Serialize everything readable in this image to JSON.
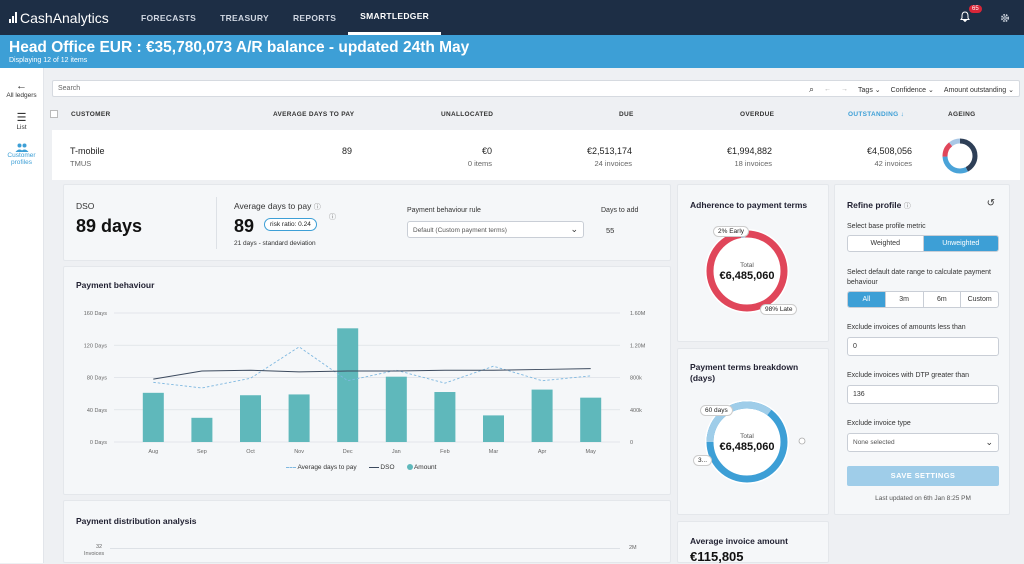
{
  "brand": "CashAnalytics",
  "nav": [
    "FORECASTS",
    "TREASURY",
    "REPORTS",
    "SMARTLEDGER"
  ],
  "notifications": "65",
  "banner": {
    "title": "Head Office EUR : €35,780,073 A/R balance - updated 24th May",
    "sub": "Displaying 12 of 12 items"
  },
  "sidebar": [
    {
      "label": "All ledgers",
      "icon": "arrow-left-icon"
    },
    {
      "label": "List",
      "icon": "list-icon"
    },
    {
      "label": "Customer profiles",
      "icon": "users-icon"
    }
  ],
  "search": {
    "placeholder": "Search",
    "filters": [
      "Tags",
      "Confidence",
      "Amount outstanding"
    ]
  },
  "columns": [
    "CUSTOMER",
    "AVERAGE DAYS TO PAY",
    "UNALLOCATED",
    "DUE",
    "OVERDUE",
    "OUTSTANDING",
    "AGEING"
  ],
  "customer": {
    "name": "T-mobile",
    "code": "TMUS",
    "avg_days": "89",
    "unallocated": "€0",
    "unallocated_sub": "0 items",
    "due": "€2,513,174",
    "due_sub": "24 invoices",
    "overdue": "€1,994,882",
    "overdue_sub": "18 invoices",
    "outstanding": "€4,508,056",
    "outstanding_sub": "42 invoices"
  },
  "dso": {
    "label": "DSO",
    "value": "89 days"
  },
  "avg_pay": {
    "label": "Average days to pay",
    "value": "89",
    "risk": "risk ratio: 0.24",
    "dev": "21 days - standard deviation"
  },
  "rule": {
    "label": "Payment behaviour rule",
    "value": "Default (Custom payment terms)",
    "days_label": "Days to add",
    "days": "55"
  },
  "payment_behaviour": {
    "title": "Payment behaviour",
    "legend": [
      "Average days to pay",
      "DSO",
      "Amount"
    ]
  },
  "chart_data": {
    "type": "bar",
    "title": "Payment behaviour",
    "categories": [
      "Aug",
      "Sep",
      "Oct",
      "Nov",
      "Dec",
      "Jan",
      "Feb",
      "Mar",
      "Apr",
      "May"
    ],
    "y_left_ticks": [
      "0 Days",
      "40 Days",
      "80 Days",
      "120 Days",
      "160 Days"
    ],
    "y_right_ticks": [
      "0",
      "400k",
      "800k",
      "1.20M",
      "1.60M"
    ],
    "ylim_left": [
      0,
      160
    ],
    "ylim_right": [
      0,
      1600000
    ],
    "series": [
      {
        "name": "Amount",
        "type": "bar",
        "axis": "right",
        "values": [
          610000,
          300000,
          580000,
          590000,
          1410000,
          810000,
          620000,
          330000,
          650000,
          550000
        ]
      },
      {
        "name": "Average days to pay",
        "type": "line",
        "style": "dashed",
        "axis": "left",
        "values": [
          74,
          67,
          79,
          118,
          76,
          89,
          73,
          94,
          76,
          82
        ]
      },
      {
        "name": "DSO",
        "type": "line",
        "axis": "left",
        "values": [
          78,
          88,
          89,
          87,
          88,
          88,
          89,
          89,
          90,
          91
        ]
      }
    ],
    "colors": {
      "Amount": "#5fb8bb",
      "Average days to pay": "#7fb8e0",
      "DSO": "#3c4a5e"
    }
  },
  "adherence": {
    "title": "Adherence to payment terms",
    "total_label": "Total",
    "total": "€6,485,060",
    "early": "2% Early",
    "late": "98% Late"
  },
  "breakdown": {
    "title": "Payment terms breakdown (days)",
    "total_label": "Total",
    "total": "€6,485,060",
    "a": "60 days",
    "b": "3..."
  },
  "avg_invoice": {
    "title": "Average invoice amount",
    "value": "€115,805"
  },
  "dist": {
    "title": "Payment distribution analysis",
    "left_tick": "32",
    "left_unit": "Invoices",
    "right_tick": "2M"
  },
  "refine": {
    "title": "Refine profile",
    "metric_label": "Select base profile metric",
    "metric_opts": [
      "Weighted",
      "Unweighted"
    ],
    "range_label": "Select default date range to calculate payment behaviour",
    "range_opts": [
      "All",
      "3m",
      "6m",
      "Custom"
    ],
    "exclude_amount_label": "Exclude invoices of amounts less than",
    "exclude_amount": "0",
    "exclude_dtp_label": "Exclude invoices with DTP greater than",
    "exclude_dtp": "136",
    "type_label": "Exclude invoice type",
    "type_value": "None selected",
    "save": "SAVE SETTINGS",
    "updated": "Last updated on 6th Jan 8:25 PM"
  }
}
